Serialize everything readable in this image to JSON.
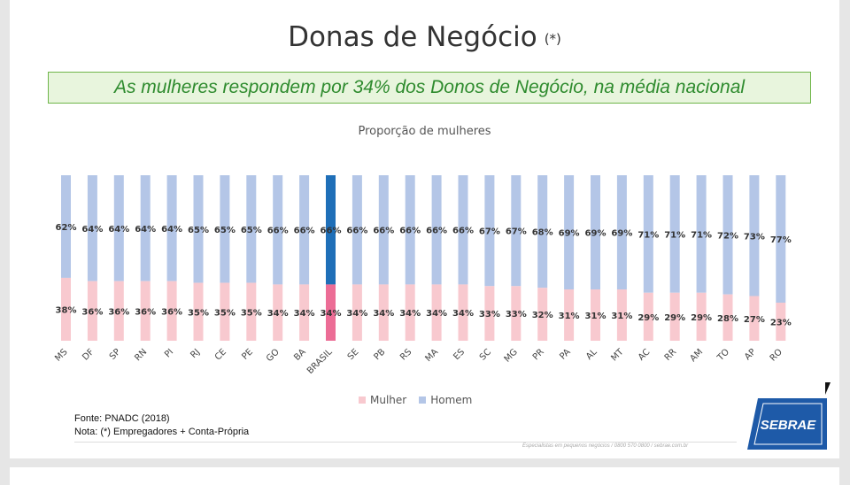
{
  "slide": {
    "title": "Donas de Negócio",
    "title_note": "(*)",
    "banner": "As mulheres respondem por 34% dos Donos de Negócio, na média nacional",
    "source": "Fonte: PNADC (2018)",
    "note": "Nota: (*) Empregadores + Conta-Própria",
    "footer": "Especialistas em pequenos negócios / 0800 570 0800 / sebrae.com.br",
    "logo": "SEBRAE"
  },
  "colors": {
    "mulher": "#f8c9cf",
    "homem": "#b4c6e7",
    "mulher_highlight": "#ec6d96",
    "homem_highlight": "#1f6fb8",
    "banner_text": "#2e8b2e",
    "logo_blue": "#1e5aa8"
  },
  "chart_data": {
    "type": "bar",
    "stacked": true,
    "percent_stacked": true,
    "title": "Proporção de mulheres",
    "categories": [
      "MS",
      "DF",
      "SP",
      "RN",
      "PI",
      "RJ",
      "CE",
      "PE",
      "GO",
      "BA",
      "BRASIL",
      "SE",
      "PB",
      "RS",
      "MA",
      "ES",
      "SC",
      "MG",
      "PR",
      "PA",
      "AL",
      "MT",
      "AC",
      "RR",
      "AM",
      "TO",
      "AP",
      "RO"
    ],
    "highlight": "BRASIL",
    "series": [
      {
        "name": "Mulher",
        "values": [
          38,
          36,
          36,
          36,
          36,
          35,
          35,
          35,
          34,
          34,
          34,
          34,
          34,
          34,
          34,
          34,
          33,
          33,
          32,
          31,
          31,
          31,
          29,
          29,
          29,
          28,
          27,
          23
        ]
      },
      {
        "name": "Homem",
        "values": [
          62,
          64,
          64,
          64,
          64,
          65,
          65,
          65,
          66,
          66,
          66,
          66,
          66,
          66,
          66,
          66,
          67,
          67,
          68,
          69,
          69,
          69,
          71,
          71,
          71,
          72,
          73,
          77
        ]
      }
    ],
    "value_suffix": "%",
    "legend_position": "bottom",
    "grid": false
  }
}
